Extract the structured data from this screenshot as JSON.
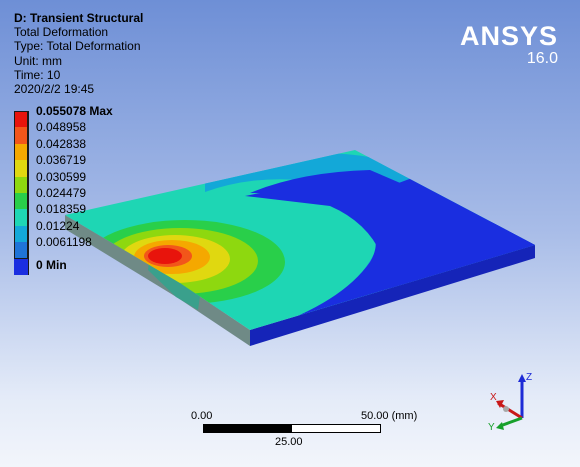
{
  "info": {
    "title": "D: Transient Structural",
    "lines": [
      "Total Deformation",
      "Type: Total Deformation",
      "Unit: mm",
      "Time: 10",
      "2020/2/2 19:45"
    ]
  },
  "brand": {
    "logo": "ANSYS",
    "version": "16.0"
  },
  "legend": {
    "items": [
      {
        "label": "0.055078 Max",
        "color": "#e8140c",
        "bold": true
      },
      {
        "label": "0.048958",
        "color": "#f2561a",
        "bold": false
      },
      {
        "label": "0.042838",
        "color": "#f5a800",
        "bold": false
      },
      {
        "label": "0.036719",
        "color": "#e0d810",
        "bold": false
      },
      {
        "label": "0.030599",
        "color": "#8ed80f",
        "bold": false
      },
      {
        "label": "0.024479",
        "color": "#29cf4a",
        "bold": false
      },
      {
        "label": "0.018359",
        "color": "#1ed6b4",
        "bold": false
      },
      {
        "label": "0.01224",
        "color": "#13a8d8",
        "bold": false
      },
      {
        "label": "0.0061198",
        "color": "#1f74d8",
        "bold": false
      },
      {
        "label": "0 Min",
        "color": "#1a2ee0",
        "bold": true
      }
    ]
  },
  "scale_bar": {
    "start": "0.00",
    "end": "50.00 (mm)",
    "mid": "25.00"
  },
  "triad": {
    "x_label": "X",
    "y_label": "Y",
    "z_label": "Z"
  }
}
